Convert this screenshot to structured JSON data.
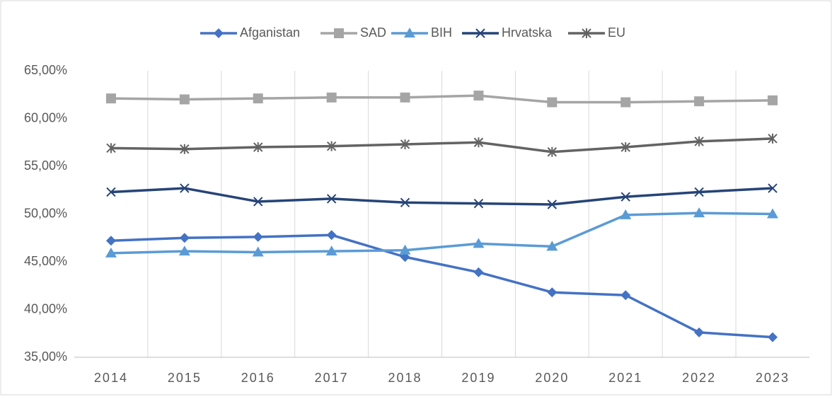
{
  "chart_data": {
    "type": "line",
    "categories": [
      "2014",
      "2015",
      "2016",
      "2017",
      "2018",
      "2019",
      "2020",
      "2021",
      "2022",
      "2023"
    ],
    "series": [
      {
        "name": "Afganistan",
        "color": "#4472c4",
        "marker": "diamond",
        "values": [
          47.2,
          47.5,
          47.6,
          47.8,
          45.5,
          43.9,
          41.8,
          41.5,
          37.6,
          37.1
        ]
      },
      {
        "name": "SAD",
        "color": "#a5a5a5",
        "marker": "square",
        "values": [
          62.1,
          62.0,
          62.1,
          62.2,
          62.2,
          62.4,
          61.7,
          61.7,
          61.8,
          61.9
        ]
      },
      {
        "name": "BIH",
        "color": "#5b9bd5",
        "marker": "triangle",
        "values": [
          45.9,
          46.1,
          46.0,
          46.1,
          46.2,
          46.9,
          46.6,
          49.9,
          50.1,
          50.0
        ]
      },
      {
        "name": "Hrvatska",
        "color": "#264478",
        "marker": "x",
        "values": [
          52.3,
          52.7,
          51.3,
          51.6,
          51.2,
          51.1,
          51.0,
          51.8,
          52.3,
          52.7
        ]
      },
      {
        "name": "EU",
        "color": "#636363",
        "marker": "star",
        "values": [
          56.9,
          56.8,
          57.0,
          57.1,
          57.3,
          57.5,
          56.5,
          57.0,
          57.6,
          57.9
        ]
      }
    ],
    "ylim": [
      35,
      65
    ],
    "yticks": [
      {
        "value": 35,
        "label": "35,00%"
      },
      {
        "value": 40,
        "label": "40,00%"
      },
      {
        "value": 45,
        "label": "45,00%"
      },
      {
        "value": 50,
        "label": "50,00%"
      },
      {
        "value": 55,
        "label": "55,00%"
      },
      {
        "value": 60,
        "label": "60,00%"
      },
      {
        "value": 65,
        "label": "65,00%"
      }
    ],
    "grid": "x",
    "legend": "top"
  }
}
